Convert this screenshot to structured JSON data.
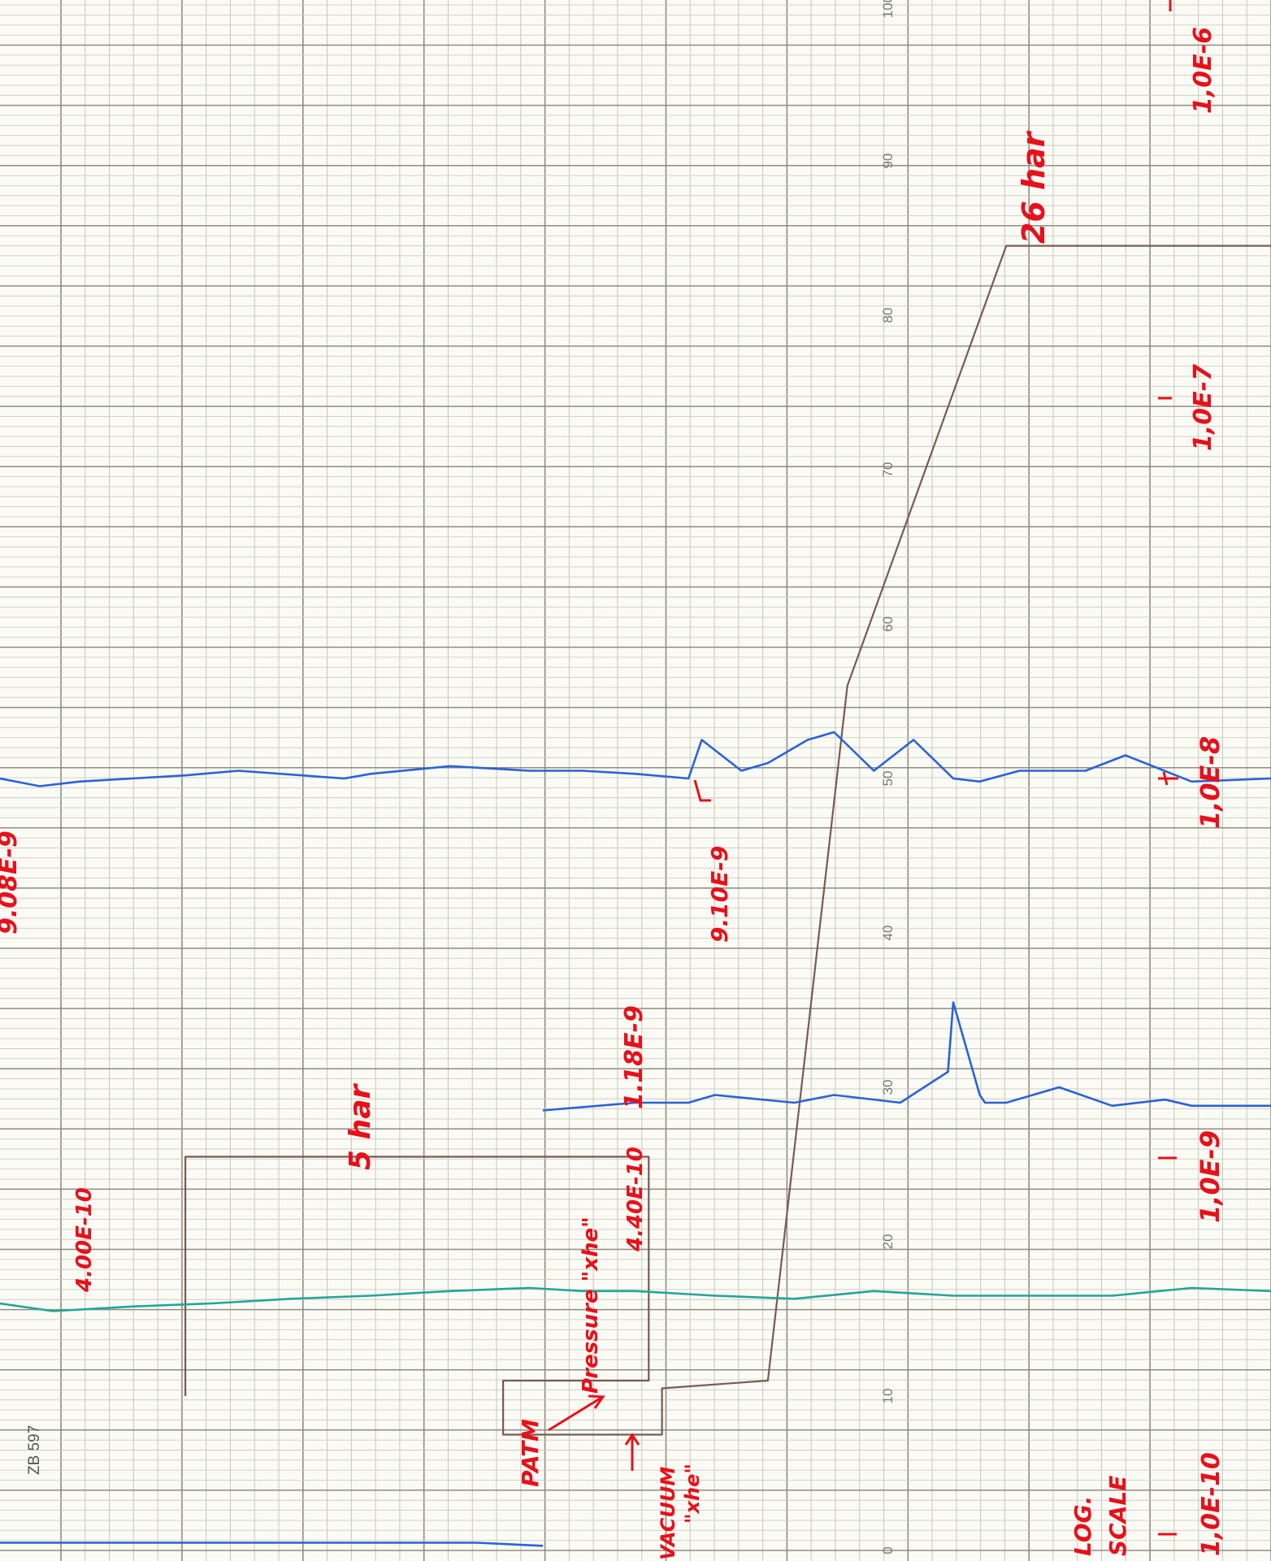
{
  "chart_data": {
    "type": "line",
    "value_axis": {
      "range": [
        0,
        100
      ],
      "ticks": [
        0,
        10,
        20,
        30,
        40,
        50,
        60,
        70,
        80,
        90,
        100
      ],
      "tick_labels": [
        "0",
        "10",
        "20",
        "30",
        "40",
        "50",
        "60",
        "70",
        "80",
        "90",
        "100"
      ]
    },
    "grid": true,
    "series": [
      {
        "color": "#7a5a52",
        "x": [
          7,
          7,
          24.5,
          24.5,
          19,
          19,
          25,
          25,
          29,
          32,
          38,
          45,
          48
        ],
        "y": [
          10,
          25.5,
          25.5,
          11,
          11,
          7.5,
          7.5,
          10.5,
          11,
          56,
          84.5,
          84.5,
          84.5
        ]
      },
      {
        "color": "#2a63d4",
        "x": [
          0,
          1.5,
          3,
          5,
          7,
          9,
          13,
          14,
          17,
          20,
          22,
          24,
          26,
          26.5,
          28,
          29,
          30.5,
          31.5,
          33,
          34.5,
          36,
          37,
          38.5,
          41,
          42.5,
          45,
          48
        ],
        "y": [
          50,
          49.5,
          49.8,
          50,
          50.2,
          50.5,
          50,
          50.3,
          50.8,
          50.5,
          50.5,
          50.3,
          50,
          52.5,
          50.5,
          51,
          52.5,
          53,
          50.5,
          52.5,
          50,
          49.8,
          50.5,
          50.5,
          51.5,
          49.8,
          50
        ]
      },
      {
        "color": "#2a63d4",
        "x": [
          20.5,
          24,
          26,
          27,
          30,
          31.5,
          34,
          35.8,
          36,
          37,
          37.2,
          38,
          40,
          42,
          44,
          45,
          48
        ],
        "y": [
          28.5,
          29,
          29,
          29.5,
          29,
          29.5,
          29,
          31,
          35.5,
          29.5,
          29,
          29,
          30,
          28.8,
          29.2,
          28.8,
          28.8
        ]
      },
      {
        "color": "#22a698",
        "x": [
          0,
          2,
          5,
          8,
          11,
          14,
          17,
          20,
          22,
          24,
          27,
          30,
          33,
          36,
          39,
          42,
          45,
          48
        ],
        "y": [
          16,
          15.5,
          15.8,
          16,
          16.3,
          16.5,
          16.8,
          17,
          16.8,
          16.8,
          16.5,
          16.3,
          16.8,
          16.5,
          16.5,
          16.5,
          17,
          16.8
        ]
      },
      {
        "color": "#2a63d4",
        "x": [
          0,
          6,
          12,
          18,
          20.5
        ],
        "y": [
          0.5,
          0.5,
          0.5,
          0.5,
          0.3
        ]
      }
    ],
    "annotations": [
      "9.08E-9",
      "4.00E-10",
      "5 har",
      "PATM",
      "Pressure \"xhe\"",
      "4.40E-10",
      "VACUUM \"xhe\"",
      "1.18E-9",
      "9.10E-9",
      "26 har",
      "1,0E-6",
      "1,0E-7",
      "1,0E-8",
      "1,0E-9",
      "LOG. SCALE",
      "1,0E-10"
    ]
  },
  "header": {
    "code": "ZB 597"
  },
  "labels": {
    "e908": "9.08E-9",
    "e400": "4.00E-10",
    "har5": "5 har",
    "patm": "PATM",
    "pressure": "Pressure \"xhe\"",
    "e440": "4.40E-10",
    "vacuum1": "VACUUM",
    "vacuum2": "\"xhe\"",
    "e118": "1.18E-9",
    "e910": "9.10E-9",
    "har26": "26 har",
    "r6": "1,0E-6",
    "r7": "1,0E-7",
    "r8": "1,0E-8",
    "r9": "1,0E-9",
    "log1": "LOG.",
    "log2": "SCALE",
    "r10": "1,0E-10"
  }
}
